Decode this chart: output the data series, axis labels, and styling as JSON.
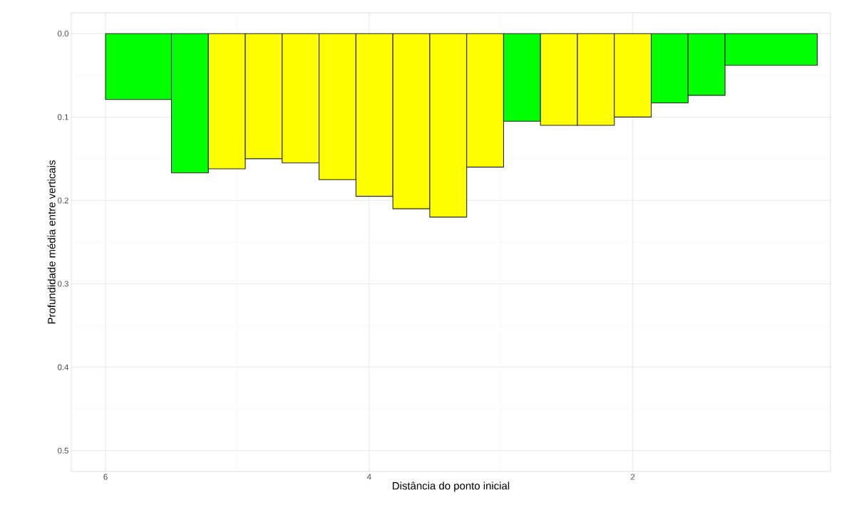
{
  "chart_data": {
    "type": "histogram",
    "xlabel": "Distância do ponto inicial",
    "ylabel": "Profundidade média entre verticais",
    "bins": [
      6.0,
      5.5,
      5.22,
      4.94,
      4.66,
      4.38,
      4.1,
      3.82,
      3.54,
      3.26,
      2.98,
      2.7,
      2.42,
      2.14,
      1.86,
      1.58,
      1.3,
      0.6
    ],
    "values": [
      0.079,
      0.167,
      0.162,
      0.15,
      0.155,
      0.175,
      0.195,
      0.21,
      0.22,
      0.16,
      0.105,
      0.11,
      0.11,
      0.1,
      0.083,
      0.074,
      0.038
    ],
    "colors": [
      "#00ff00",
      "#00ff00",
      "#ffff00",
      "#ffff00",
      "#ffff00",
      "#ffff00",
      "#ffff00",
      "#ffff00",
      "#ffff00",
      "#ffff00",
      "#00ff00",
      "#ffff00",
      "#ffff00",
      "#ffff00",
      "#00ff00",
      "#00ff00",
      "#00ff00"
    ],
    "xlim": [
      6.26,
      0.5
    ],
    "ylim": [
      0.525,
      -0.025
    ],
    "xticks": [
      6,
      4,
      2
    ],
    "yticks": [
      {
        "value": 0,
        "label": "0.0"
      },
      {
        "value": 0.1,
        "label": "0.1"
      },
      {
        "value": 0.2,
        "label": "0.2"
      },
      {
        "value": 0.3,
        "label": "0.3"
      },
      {
        "value": 0.4,
        "label": "0.4"
      },
      {
        "value": 0.5,
        "label": "0.5"
      }
    ],
    "grid": true
  }
}
